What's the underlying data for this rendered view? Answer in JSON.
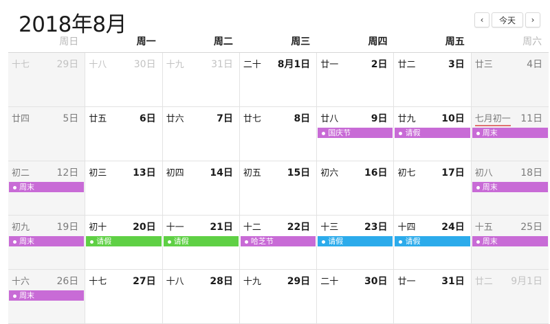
{
  "header": {
    "title": "2018年8月"
  },
  "nav": {
    "prev": "‹",
    "today": "今天",
    "next": "›"
  },
  "colors": {
    "purple": "#c86bd6",
    "green": "#5fd045",
    "blue": "#2cabeb"
  },
  "weekdays": [
    "周日",
    "周一",
    "周二",
    "周三",
    "周四",
    "周五",
    "周六"
  ],
  "weeks": [
    [
      {
        "lunar": "十七",
        "solar": "29日",
        "other": true
      },
      {
        "lunar": "十八",
        "solar": "30日",
        "other": true
      },
      {
        "lunar": "十九",
        "solar": "31日",
        "other": true
      },
      {
        "lunar": "二十",
        "solar": "8月1日"
      },
      {
        "lunar": "廿一",
        "solar": "2日"
      },
      {
        "lunar": "廿二",
        "solar": "3日"
      },
      {
        "lunar": "廿三",
        "solar": "4日"
      }
    ],
    [
      {
        "lunar": "廿四",
        "solar": "5日"
      },
      {
        "lunar": "廿五",
        "solar": "6日"
      },
      {
        "lunar": "廿六",
        "solar": "7日"
      },
      {
        "lunar": "廿七",
        "solar": "8日"
      },
      {
        "lunar": "廿八",
        "solar": "9日",
        "event": {
          "label": "国庆节",
          "color": "purple"
        }
      },
      {
        "lunar": "廿九",
        "solar": "10日",
        "event": {
          "label": "请假",
          "color": "purple"
        }
      },
      {
        "lunar": "七月初一",
        "solar": "11日",
        "today": true,
        "event": {
          "label": "周末",
          "color": "purple"
        }
      }
    ],
    [
      {
        "lunar": "初二",
        "solar": "12日",
        "event": {
          "label": "周末",
          "color": "purple"
        }
      },
      {
        "lunar": "初三",
        "solar": "13日"
      },
      {
        "lunar": "初四",
        "solar": "14日"
      },
      {
        "lunar": "初五",
        "solar": "15日"
      },
      {
        "lunar": "初六",
        "solar": "16日"
      },
      {
        "lunar": "初七",
        "solar": "17日"
      },
      {
        "lunar": "初八",
        "solar": "18日",
        "event": {
          "label": "周末",
          "color": "purple"
        }
      }
    ],
    [
      {
        "lunar": "初九",
        "solar": "19日",
        "event": {
          "label": "周末",
          "color": "purple"
        }
      },
      {
        "lunar": "初十",
        "solar": "20日",
        "event": {
          "label": "请假",
          "color": "green"
        }
      },
      {
        "lunar": "十一",
        "solar": "21日",
        "event": {
          "label": "请假",
          "color": "green"
        }
      },
      {
        "lunar": "十二",
        "solar": "22日",
        "event": {
          "label": "哈芝节",
          "color": "purple"
        }
      },
      {
        "lunar": "十三",
        "solar": "23日",
        "event": {
          "label": "请假",
          "color": "blue"
        }
      },
      {
        "lunar": "十四",
        "solar": "24日",
        "event": {
          "label": "请假",
          "color": "blue"
        }
      },
      {
        "lunar": "十五",
        "solar": "25日",
        "event": {
          "label": "周末",
          "color": "purple"
        }
      }
    ],
    [
      {
        "lunar": "十六",
        "solar": "26日",
        "event": {
          "label": "周末",
          "color": "purple"
        }
      },
      {
        "lunar": "十七",
        "solar": "27日"
      },
      {
        "lunar": "十八",
        "solar": "28日"
      },
      {
        "lunar": "十九",
        "solar": "29日"
      },
      {
        "lunar": "二十",
        "solar": "30日"
      },
      {
        "lunar": "廿一",
        "solar": "31日"
      },
      {
        "lunar": "廿二",
        "solar": "9月1日",
        "other": true
      }
    ]
  ]
}
